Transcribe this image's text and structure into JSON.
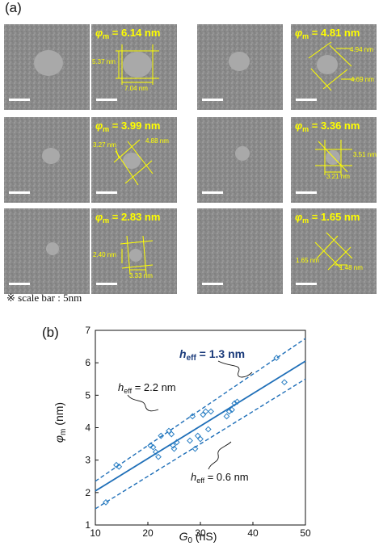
{
  "panel_a": {
    "label": "(a)",
    "phi_symbol": "φ",
    "phi_sub": "m",
    "tiles": [
      {
        "phi": "= 6.14 nm",
        "dims": [
          "5.37 nm",
          "7.04 nm"
        ]
      },
      {
        "phi": "= 4.81 nm",
        "dims": [
          "4.94 nm",
          "4.69 nm"
        ]
      },
      {
        "phi": "= 3.99 nm",
        "dims": [
          "3.27 nm",
          "4.88 nm"
        ]
      },
      {
        "phi": "= 3.36 nm",
        "dims": [
          "3.51 nm",
          "3.21 nm"
        ]
      },
      {
        "phi": "= 2.83 nm",
        "dims": [
          "2.40 nm",
          "3.33 nm"
        ]
      },
      {
        "phi": "= 1.65 nm",
        "dims": [
          "1.65 nm",
          "1.48 nm"
        ]
      }
    ],
    "scale_note": "※ scale bar : 5nm"
  },
  "panel_b": {
    "label": "(b)",
    "annotations": {
      "h13": {
        "symbol": "h",
        "sub": "eff",
        "text": " = 1.3 nm"
      },
      "h22": {
        "symbol": "h",
        "sub": "eff",
        "text": " = 2.2 nm"
      },
      "h06": {
        "symbol": "h",
        "sub": "eff",
        "text": " = 0.6 nm"
      }
    }
  },
  "chart_data": {
    "type": "scatter",
    "title": "",
    "xlabel": "G0 (nS)",
    "ylabel": "φm (nm)",
    "xlim": [
      10,
      50
    ],
    "ylim": [
      1,
      7
    ],
    "xticks": [
      10,
      20,
      30,
      40,
      50
    ],
    "yticks": [
      1,
      2,
      3,
      4,
      5,
      6,
      7
    ],
    "grid": false,
    "series": [
      {
        "name": "",
        "kind": "markers",
        "marker": "diamond",
        "x": [
          12,
          14,
          14.5,
          20.5,
          21,
          21.5,
          22,
          22.5,
          24,
          24.5,
          24.8,
          25,
          25.5,
          28,
          28.5,
          29,
          29.5,
          30,
          30.5,
          31,
          31.5,
          32,
          35,
          35.5,
          36,
          36.5,
          37,
          44.5,
          46
        ],
        "y": [
          1.7,
          2.85,
          2.8,
          3.45,
          3.4,
          3.25,
          3.1,
          3.75,
          3.9,
          3.8,
          3.45,
          3.35,
          3.55,
          3.6,
          4.35,
          3.35,
          3.75,
          3.65,
          4.4,
          4.5,
          3.95,
          4.5,
          4.35,
          4.5,
          4.55,
          4.75,
          4.8,
          6.15,
          5.4
        ]
      },
      {
        "name": "",
        "kind": "line",
        "style": "solid",
        "x": [
          10,
          50
        ],
        "y": [
          2.05,
          6.05
        ]
      },
      {
        "name": "",
        "kind": "line",
        "style": "dashed",
        "x": [
          10,
          50
        ],
        "y": [
          2.35,
          6.75
        ]
      },
      {
        "name": "",
        "kind": "line",
        "style": "dashed",
        "x": [
          10,
          50
        ],
        "y": [
          1.5,
          5.5
        ]
      }
    ],
    "colors": {
      "marker": "#2a7fc4",
      "line": "#1f6fb8",
      "annotation_bold": "#1a3a7a"
    }
  }
}
